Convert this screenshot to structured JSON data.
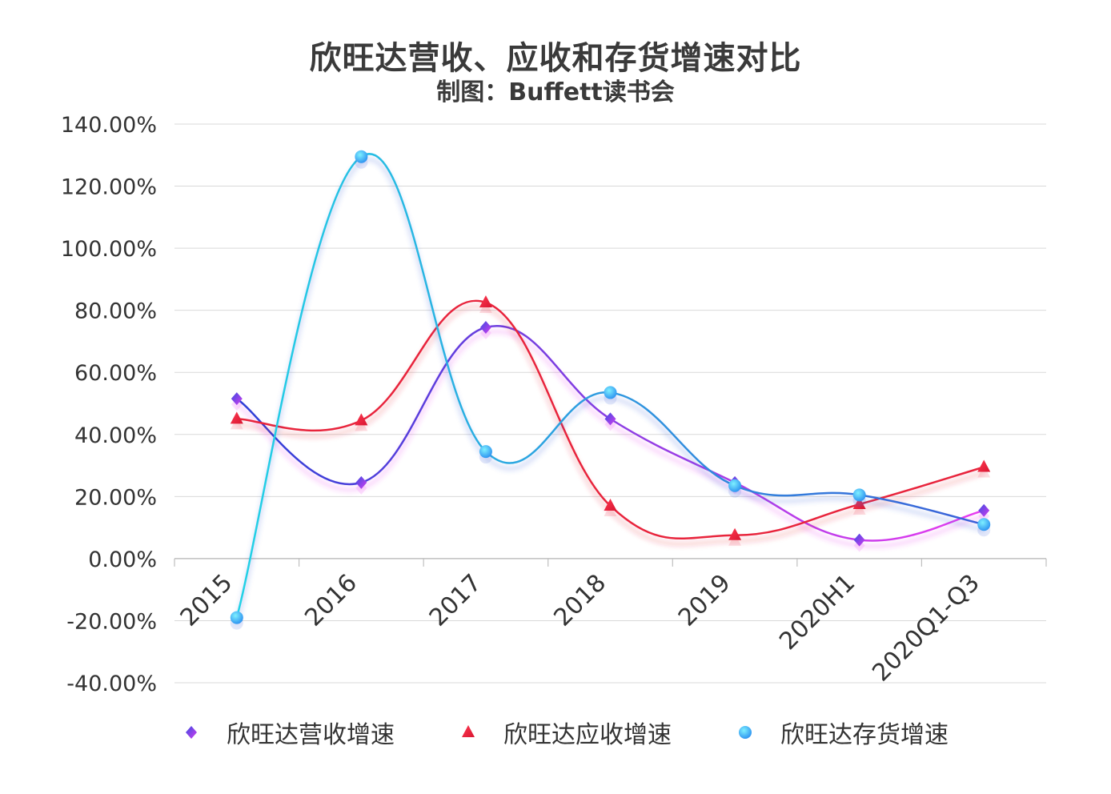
{
  "chart_data": {
    "type": "line",
    "title": "欣旺达营收、应收和存货增速对比",
    "subtitle": "制图：Buffett读书会",
    "categories": [
      "2015",
      "2016",
      "2017",
      "2018",
      "2019",
      "2020H1",
      "2020Q1-Q3"
    ],
    "ylim": [
      -40,
      140
    ],
    "y_ticks": [
      "140.00%",
      "120.00%",
      "100.00%",
      "80.00%",
      "60.00%",
      "40.00%",
      "20.00%",
      "0.00%",
      "-20.00%",
      "-40.00%"
    ],
    "y_tick_values": [
      140,
      120,
      100,
      80,
      60,
      40,
      20,
      0,
      -20,
      -40
    ],
    "grid": true,
    "smooth": true,
    "legend_position": "bottom",
    "series": [
      {
        "name": "欣旺达营收增速",
        "marker": "diamond",
        "color_start": "#2b3fd6",
        "color_end": "#e93cf0",
        "values": [
          51.5,
          24.5,
          74.5,
          45.0,
          24.5,
          6.0,
          15.5
        ]
      },
      {
        "name": "欣旺达应收增速",
        "marker": "triangle",
        "color_start": "#e8243c",
        "color_end": "#e8243c",
        "values": [
          45.0,
          44.5,
          82.5,
          17.0,
          7.5,
          17.5,
          29.5
        ]
      },
      {
        "name": "欣旺达存货增速",
        "marker": "circle",
        "color_start": "#22d2e6",
        "color_end": "#3a5fd8",
        "values": [
          -19.0,
          129.5,
          34.5,
          53.5,
          23.5,
          20.5,
          11.0
        ]
      }
    ]
  }
}
